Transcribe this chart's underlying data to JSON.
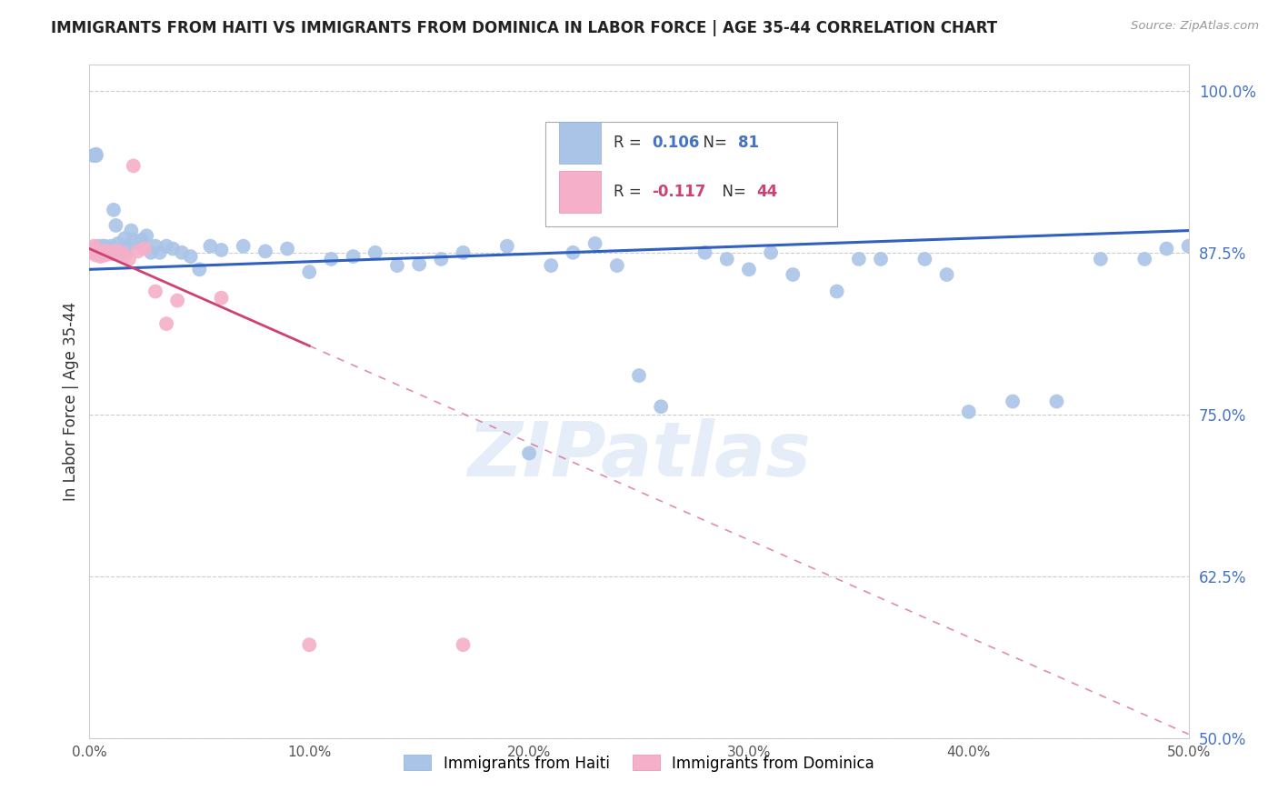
{
  "title": "IMMIGRANTS FROM HAITI VS IMMIGRANTS FROM DOMINICA IN LABOR FORCE | AGE 35-44 CORRELATION CHART",
  "source": "Source: ZipAtlas.com",
  "ylabel": "In Labor Force | Age 35-44",
  "xlim": [
    0.0,
    0.5
  ],
  "ylim": [
    0.5,
    1.02
  ],
  "xticks": [
    0.0,
    0.1,
    0.2,
    0.3,
    0.4,
    0.5
  ],
  "xtick_labels": [
    "0.0%",
    "10.0%",
    "20.0%",
    "30.0%",
    "40.0%",
    "50.0%"
  ],
  "ytick_labels_right": [
    "100.0%",
    "87.5%",
    "75.0%",
    "62.5%",
    "50.0%"
  ],
  "yticks_right": [
    1.0,
    0.875,
    0.75,
    0.625,
    0.5
  ],
  "haiti_color": "#aac4e8",
  "dominica_color": "#f5afc8",
  "haiti_R": 0.106,
  "haiti_N": 81,
  "dominica_R": -0.117,
  "dominica_N": 44,
  "haiti_trend_color": "#3060c0",
  "dominica_trend_color": "#d04070",
  "watermark": "ZIPatlas",
  "legend_haiti": "Immigrants from Haiti",
  "legend_dominica": "Immigrants from Dominica",
  "haiti_trend_x0": 0.0,
  "haiti_trend_y0": 0.862,
  "haiti_trend_x1": 0.5,
  "haiti_trend_y1": 0.892,
  "dominica_trend_x0": 0.0,
  "dominica_trend_y0": 0.878,
  "dominica_trend_x1": 0.5,
  "dominica_trend_y1": 0.503,
  "haiti_x": [
    0.002,
    0.002,
    0.003,
    0.003,
    0.003,
    0.004,
    0.004,
    0.004,
    0.005,
    0.005,
    0.005,
    0.006,
    0.006,
    0.007,
    0.007,
    0.007,
    0.008,
    0.008,
    0.009,
    0.009,
    0.01,
    0.01,
    0.011,
    0.012,
    0.013,
    0.014,
    0.015,
    0.016,
    0.017,
    0.018,
    0.019,
    0.02,
    0.022,
    0.024,
    0.026,
    0.028,
    0.03,
    0.032,
    0.035,
    0.038,
    0.042,
    0.046,
    0.05,
    0.055,
    0.06,
    0.07,
    0.08,
    0.09,
    0.1,
    0.11,
    0.12,
    0.13,
    0.14,
    0.15,
    0.16,
    0.17,
    0.19,
    0.2,
    0.21,
    0.22,
    0.23,
    0.24,
    0.25,
    0.26,
    0.28,
    0.29,
    0.3,
    0.31,
    0.32,
    0.34,
    0.35,
    0.36,
    0.38,
    0.39,
    0.4,
    0.42,
    0.44,
    0.46,
    0.48,
    0.49,
    0.5
  ],
  "haiti_y": [
    0.95,
    0.95,
    0.95,
    0.95,
    0.951,
    0.878,
    0.875,
    0.88,
    0.875,
    0.875,
    0.878,
    0.876,
    0.88,
    0.875,
    0.878,
    0.88,
    0.875,
    0.877,
    0.876,
    0.878,
    0.875,
    0.88,
    0.908,
    0.896,
    0.882,
    0.876,
    0.874,
    0.886,
    0.88,
    0.88,
    0.892,
    0.885,
    0.882,
    0.885,
    0.888,
    0.875,
    0.88,
    0.875,
    0.88,
    0.878,
    0.875,
    0.872,
    0.862,
    0.88,
    0.877,
    0.88,
    0.876,
    0.878,
    0.86,
    0.87,
    0.872,
    0.875,
    0.865,
    0.866,
    0.87,
    0.875,
    0.88,
    0.72,
    0.865,
    0.875,
    0.882,
    0.865,
    0.78,
    0.756,
    0.875,
    0.87,
    0.862,
    0.875,
    0.858,
    0.845,
    0.87,
    0.87,
    0.87,
    0.858,
    0.752,
    0.76,
    0.76,
    0.87,
    0.87,
    0.878,
    0.88
  ],
  "dominica_x": [
    0.001,
    0.001,
    0.002,
    0.002,
    0.002,
    0.003,
    0.003,
    0.003,
    0.003,
    0.004,
    0.004,
    0.004,
    0.005,
    0.005,
    0.005,
    0.005,
    0.006,
    0.006,
    0.006,
    0.007,
    0.007,
    0.007,
    0.008,
    0.008,
    0.009,
    0.009,
    0.01,
    0.01,
    0.011,
    0.012,
    0.013,
    0.014,
    0.015,
    0.016,
    0.018,
    0.02,
    0.022,
    0.025,
    0.03,
    0.035,
    0.04,
    0.06,
    0.1,
    0.17
  ],
  "dominica_y": [
    0.878,
    0.875,
    0.88,
    0.876,
    0.875,
    0.876,
    0.875,
    0.873,
    0.878,
    0.876,
    0.874,
    0.875,
    0.875,
    0.872,
    0.876,
    0.875,
    0.874,
    0.875,
    0.876,
    0.874,
    0.875,
    0.873,
    0.875,
    0.876,
    0.874,
    0.875,
    0.875,
    0.874,
    0.876,
    0.875,
    0.876,
    0.874,
    0.875,
    0.872,
    0.87,
    0.942,
    0.876,
    0.878,
    0.845,
    0.82,
    0.838,
    0.84,
    0.572,
    0.572
  ]
}
